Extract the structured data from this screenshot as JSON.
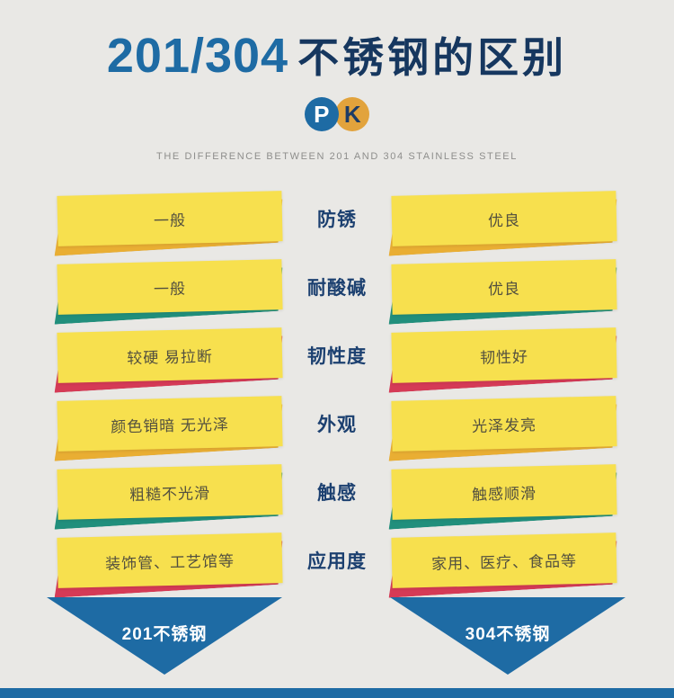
{
  "title": {
    "numbers": "201/304",
    "text": "不锈钢的区别"
  },
  "pk_badge": {
    "p": "P",
    "k": "K"
  },
  "subtitle": "THE DIFFERENCE BETWEEN 201 AND 304 STAINLESS STEEL",
  "rows": [
    {
      "label": "防锈",
      "left": "一般",
      "right": "优良",
      "accent": "#e9ae33"
    },
    {
      "label": "耐酸碱",
      "left": "一般",
      "right": "优良",
      "accent": "#218f7c"
    },
    {
      "label": "韧性度",
      "left": "较硬 易拉断",
      "right": "韧性好",
      "accent": "#d53a56"
    },
    {
      "label": "外观",
      "left": "颜色销暗 无光泽",
      "right": "光泽发亮",
      "accent": "#e9ae33"
    },
    {
      "label": "触感",
      "left": "粗糙不光滑",
      "right": "触感顺滑",
      "accent": "#218f7c"
    },
    {
      "label": "应用度",
      "left": "装饰管、工艺馆等",
      "right": "家用、医疗、食品等",
      "accent": "#d53a56"
    }
  ],
  "footer": {
    "left_arrow": "201不锈钢",
    "right_arrow": "304不锈钢"
  },
  "colors": {
    "blue": "#1e6ba4",
    "navy": "#16375f",
    "yellow": "#f7e04e",
    "gold": "#e9ae33",
    "teal": "#218f7c",
    "red": "#d53a56",
    "orange": "#e2a33c",
    "background": "#e9e8e5"
  }
}
